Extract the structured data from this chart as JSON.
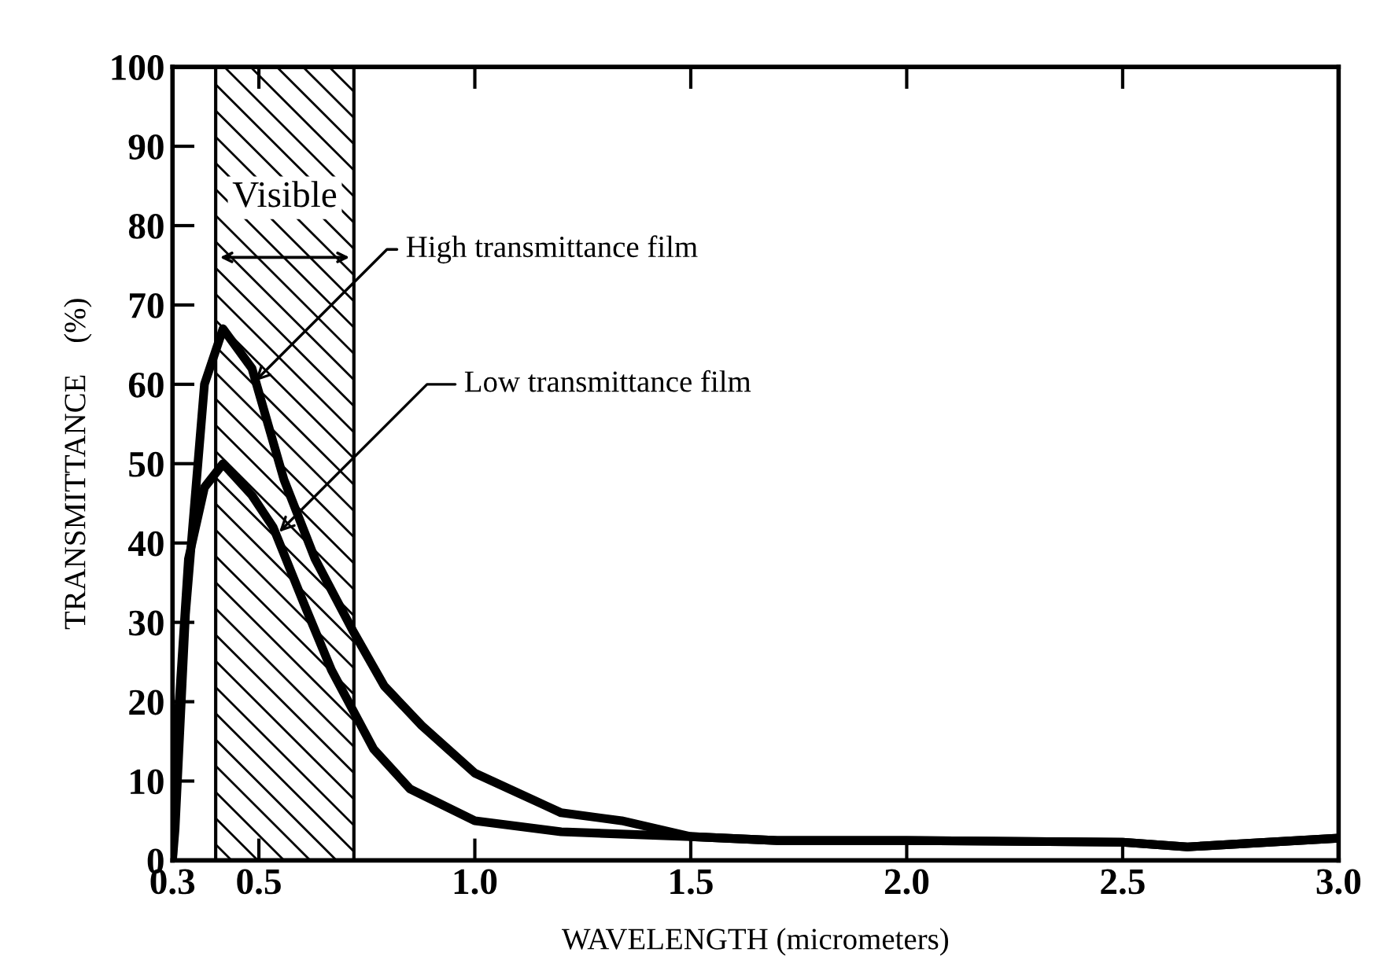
{
  "chart_data": {
    "type": "line",
    "xlabel": "WAVELENGTH (micrometers)",
    "ylabel": "TRANSMITTANCE    (%)",
    "xlim": [
      0.3,
      3.0
    ],
    "ylim": [
      0,
      100
    ],
    "xticks": [
      0.3,
      0.5,
      {
        "value": 1.0,
        "label": "1.0"
      },
      1.5,
      {
        "value": 2.0,
        "label": "2.0"
      },
      2.5,
      {
        "value": 3.0,
        "label": "3.0"
      }
    ],
    "yticks": [
      0,
      10,
      20,
      30,
      40,
      50,
      60,
      70,
      80,
      90,
      100
    ],
    "grid": false,
    "legend": false,
    "marker": "none",
    "line_style": "solid",
    "series": [
      {
        "color": "#000000",
        "x": [
          0.3,
          0.306,
          0.33,
          0.374,
          0.417,
          0.484,
          0.558,
          0.63,
          0.717,
          0.79,
          0.877,
          1.0,
          1.16,
          1.2,
          1.34,
          1.5,
          1.7,
          2.0,
          2.5,
          2.65,
          3.0
        ],
        "values": [
          0,
          4,
          31,
          60,
          67,
          62,
          48,
          38,
          29,
          22,
          17,
          11,
          7,
          6,
          5,
          3,
          2.5,
          2.5,
          2.3,
          1.7,
          2.8
        ]
      },
      {
        "color": "#000000",
        "x": [
          0.3,
          0.312,
          0.337,
          0.374,
          0.417,
          0.484,
          0.533,
          0.607,
          0.668,
          0.717,
          0.766,
          0.85,
          1.0,
          1.2,
          1.5,
          1.7,
          2.0,
          2.5,
          2.65,
          3.0
        ],
        "values": [
          0,
          17,
          38,
          47,
          50,
          46,
          42,
          32,
          24,
          19,
          14,
          9,
          5,
          3.6,
          3,
          2.5,
          2.5,
          2.3,
          1.7,
          2.8
        ]
      }
    ],
    "bands": [
      {
        "axis": "x",
        "from": 0.4,
        "to": 0.72,
        "label": "Visible"
      }
    ],
    "annotations": [
      {
        "text": "High transmittance film",
        "x": 0.484,
        "y": 60
      },
      {
        "text": "Low transmittance film",
        "x": 0.54,
        "y": 41
      }
    ]
  }
}
